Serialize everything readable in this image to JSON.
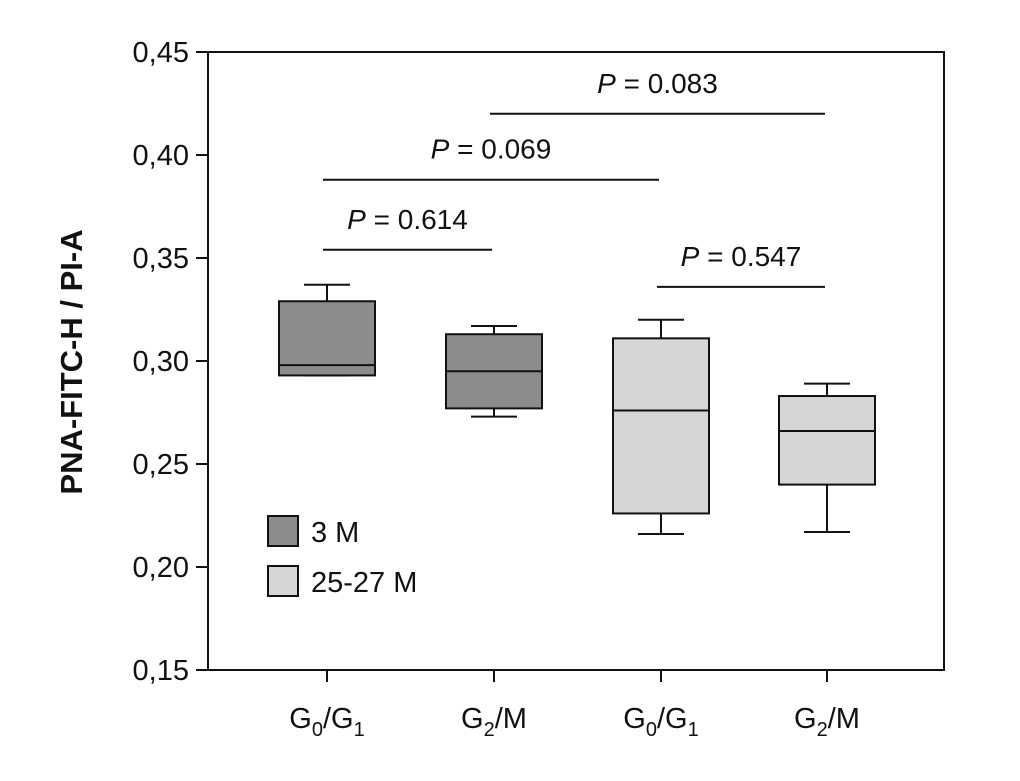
{
  "chart_data": {
    "type": "box",
    "title": "",
    "xlabel": "",
    "ylabel": "PNA-FITC-H / PI-A",
    "ylim": [
      0.15,
      0.45
    ],
    "yticks": [
      {
        "value": 0.15,
        "label": "0,15"
      },
      {
        "value": 0.2,
        "label": "0,20"
      },
      {
        "value": 0.25,
        "label": "0,25"
      },
      {
        "value": 0.3,
        "label": "0,30"
      },
      {
        "value": 0.35,
        "label": "0,35"
      },
      {
        "value": 0.4,
        "label": "0,40"
      },
      {
        "value": 0.45,
        "label": "0,45"
      }
    ],
    "grid": false,
    "legend_position": "bottom-left",
    "categories": [
      {
        "base": "G",
        "sub1": "0",
        "sep": "/",
        "base2": "G",
        "sub2": "1"
      },
      {
        "base": "G",
        "sub1": "2",
        "sep": "/M",
        "base2": "",
        "sub2": ""
      },
      {
        "base": "G",
        "sub1": "0",
        "sep": "/",
        "base2": "G",
        "sub2": "1"
      },
      {
        "base": "G",
        "sub1": "2",
        "sep": "/M",
        "base2": "",
        "sub2": ""
      }
    ],
    "series": [
      {
        "name": "3 M",
        "color": "#8c8c8c"
      },
      {
        "name": "25-27 M",
        "color": "#d6d6d6"
      }
    ],
    "boxes": [
      {
        "category_index": 0,
        "series_index": 0,
        "whisker_low": 0.293,
        "q1": 0.293,
        "median": 0.298,
        "q3": 0.329,
        "whisker_high": 0.337
      },
      {
        "category_index": 1,
        "series_index": 0,
        "whisker_low": 0.273,
        "q1": 0.277,
        "median": 0.295,
        "q3": 0.313,
        "whisker_high": 0.317
      },
      {
        "category_index": 2,
        "series_index": 1,
        "whisker_low": 0.216,
        "q1": 0.226,
        "median": 0.276,
        "q3": 0.311,
        "whisker_high": 0.32
      },
      {
        "category_index": 3,
        "series_index": 1,
        "whisker_low": 0.217,
        "q1": 0.24,
        "median": 0.266,
        "q3": 0.283,
        "whisker_high": 0.289
      }
    ],
    "comparisons": [
      {
        "from": 0,
        "to": 1,
        "y": 0.354,
        "p_label": "P",
        "p_value": " = 0.614"
      },
      {
        "from": 0,
        "to": 2,
        "y": 0.388,
        "p_label": "P",
        "p_value": " = 0.069"
      },
      {
        "from": 1,
        "to": 3,
        "y": 0.42,
        "p_label": "P",
        "p_value": " = 0.083"
      },
      {
        "from": 2,
        "to": 3,
        "y": 0.336,
        "p_label": "P",
        "p_value": " = 0.547"
      }
    ]
  }
}
